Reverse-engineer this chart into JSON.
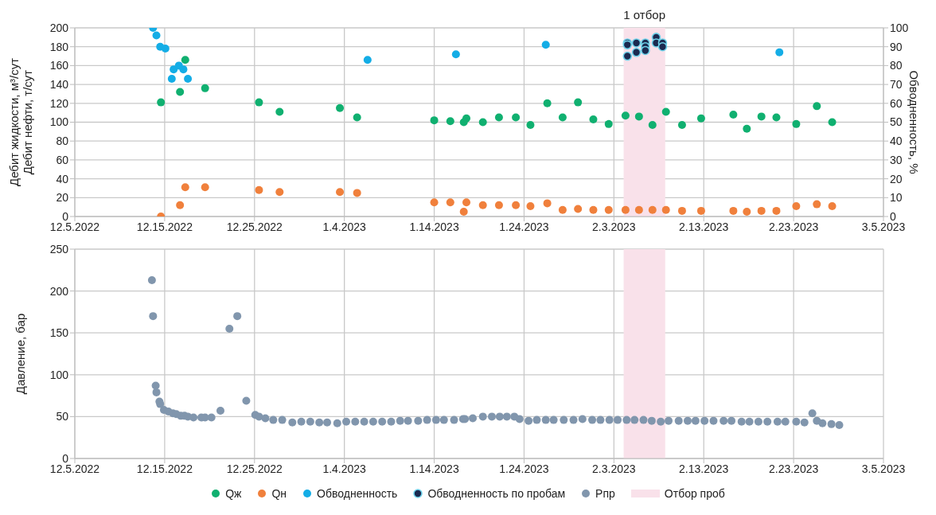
{
  "chart_data": [
    {
      "type": "scatter",
      "ylabel": "Дебит жидкости, м³/сут\nДебит нефти, т/сут",
      "y2label": "Обводненность, %",
      "xlim": [
        "2022-12-05",
        "2023-03-05"
      ],
      "xticks": [
        {
          "value": "2022-12-05",
          "label": "12.5.2022"
        },
        {
          "value": "2022-12-15",
          "label": "12.15.2022"
        },
        {
          "value": "2022-12-25",
          "label": "12.25.2022"
        },
        {
          "value": "2023-01-04",
          "label": "1.4.2023"
        },
        {
          "value": "2023-01-14",
          "label": "1.14.2023"
        },
        {
          "value": "2023-01-24",
          "label": "1.24.2023"
        },
        {
          "value": "2023-02-03",
          "label": "2.3.2023"
        },
        {
          "value": "2023-02-13",
          "label": "2.13.2023"
        },
        {
          "value": "2023-02-23",
          "label": "2.23.2023"
        },
        {
          "value": "2023-03-05",
          "label": "3.5.2023"
        }
      ],
      "ylim": [
        0,
        200
      ],
      "yticks": [
        0,
        20,
        40,
        60,
        80,
        100,
        120,
        140,
        160,
        180,
        200
      ],
      "y2lim": [
        0,
        100
      ],
      "y2ticks": [
        0,
        10,
        20,
        30,
        40,
        50,
        60,
        70,
        80,
        90,
        100
      ],
      "grid": true,
      "legend": "bottom",
      "marker": "circle",
      "x": [
        "2022-12-14T14:00",
        "2022-12-16T17:00",
        "2022-12-17T07:00",
        "2022-12-19T12:00",
        "2022-12-25T12:00",
        "2022-12-27T19:00",
        "2023-01-03T12:00",
        "2023-01-05T10:00",
        "2023-01-14T00:00",
        "2023-01-15T19:00",
        "2023-01-17T07:00",
        "2023-01-17T14:00",
        "2023-01-19T10:00",
        "2023-01-21T05:00",
        "2023-01-23T02:00",
        "2023-01-24T17:00",
        "2023-01-26T14:00",
        "2023-01-28T07:00",
        "2023-01-30T00:00",
        "2023-01-31T17:00",
        "2023-02-02T10:00",
        "2023-02-04T07:00",
        "2023-02-05T19:00",
        "2023-02-07T07:00",
        "2023-02-08T19:00",
        "2023-02-10T14:00",
        "2023-02-12T17:00",
        "2023-02-16T07:00",
        "2023-02-17T19:00",
        "2023-02-19T10:00",
        "2023-02-21T02:00",
        "2023-02-23T07:00",
        "2023-02-25T14:00",
        "2023-02-27T07:00"
      ],
      "series": [
        {
          "name": "Qж",
          "color": "#10b070",
          "values": [
            121,
            132,
            166,
            136,
            121,
            111,
            115,
            105,
            102,
            101,
            100,
            104,
            100,
            105,
            105,
            97,
            120,
            105,
            121,
            103,
            98,
            107,
            106,
            97,
            111,
            97,
            104,
            108,
            93,
            106,
            105,
            98,
            117,
            100
          ]
        },
        {
          "name": "Qн",
          "color": "#f0803c",
          "values": [
            0,
            12,
            31,
            31,
            28,
            26,
            26,
            25,
            15,
            15,
            5,
            15,
            12,
            12,
            12,
            11,
            14,
            7,
            8,
            7,
            7,
            7,
            7,
            7,
            7,
            6,
            6,
            6,
            5,
            6,
            6,
            11,
            13,
            11
          ]
        },
        {
          "name": "Обводненность",
          "color": "#14ade6",
          "axis": "y2",
          "x": [
            "2022-12-13T17:00",
            "2022-12-14T02:00",
            "2022-12-14T12:00",
            "2022-12-15T02:00",
            "2022-12-15T19:00",
            "2022-12-16T00:00",
            "2022-12-16T14:00",
            "2022-12-17T02:00",
            "2022-12-17T14:00",
            "2023-01-06T14:00",
            "2023-01-16T10:00",
            "2023-01-26T10:00",
            "2023-02-21T10:00"
          ],
          "values": [
            100,
            96,
            90,
            89,
            73,
            78,
            80,
            78,
            73,
            83,
            86,
            91,
            87
          ]
        },
        {
          "name": "Обводненность по пробам",
          "color": "#1b2a50",
          "axis": "y2",
          "x": [
            "2023-02-04T12:00",
            "2023-02-04T12:00",
            "2023-02-04T12:00",
            "2023-02-05T12:00",
            "2023-02-05T12:00",
            "2023-02-06T12:00",
            "2023-02-06T12:00",
            "2023-02-06T12:00",
            "2023-02-07T17:00",
            "2023-02-07T17:00",
            "2023-02-08T10:00",
            "2023-02-08T10:00"
          ],
          "values": [
            92,
            91,
            85,
            92,
            87,
            92,
            90,
            88,
            95,
            92,
            92,
            90
          ]
        }
      ],
      "bands": [
        {
          "axis": "x",
          "from": "2023-02-04T02:00",
          "to": "2023-02-08T17:00",
          "label": "1 отбор",
          "color": "#f9e1ea"
        }
      ]
    },
    {
      "type": "scatter",
      "ylabel": "Давление, бар",
      "xlim": [
        "2022-12-05",
        "2023-03-05"
      ],
      "xticks": [
        {
          "value": "2022-12-05",
          "label": "12.5.2022"
        },
        {
          "value": "2022-12-15",
          "label": "12.15.2022"
        },
        {
          "value": "2022-12-25",
          "label": "12.25.2022"
        },
        {
          "value": "2023-01-04",
          "label": "1.4.2023"
        },
        {
          "value": "2023-01-14",
          "label": "1.14.2023"
        },
        {
          "value": "2023-01-24",
          "label": "1.24.2023"
        },
        {
          "value": "2023-02-03",
          "label": "2.3.2023"
        },
        {
          "value": "2023-02-13",
          "label": "2.13.2023"
        },
        {
          "value": "2023-02-23",
          "label": "2.23.2023"
        },
        {
          "value": "2023-03-05",
          "label": "3.5.2023"
        }
      ],
      "ylim": [
        0,
        250
      ],
      "yticks": [
        0,
        50,
        100,
        150,
        200,
        250
      ],
      "grid": true,
      "legend": "bottom",
      "marker": "circle",
      "series": [
        {
          "name": "Pпр",
          "color": "#8196ad",
          "x": [
            "2022-12-13T14:00",
            "2022-12-13T17:00",
            "2022-12-14T00:00",
            "2022-12-14T02:00",
            "2022-12-14T10:00",
            "2022-12-14T12:00",
            "2022-12-14T22:00",
            "2022-12-15T10:00",
            "2022-12-15T22:00",
            "2022-12-16T07:00",
            "2022-12-16T19:00",
            "2022-12-17T05:00",
            "2022-12-17T14:00",
            "2022-12-18T05:00",
            "2022-12-19T02:00",
            "2022-12-19T12:00",
            "2022-12-20T05:00",
            "2022-12-21T05:00",
            "2022-12-22T05:00",
            "2022-12-23T02:00",
            "2022-12-24T02:00",
            "2022-12-25T02:00",
            "2022-12-25T12:00",
            "2022-12-26T05:00",
            "2022-12-27T02:00",
            "2022-12-28T02:00",
            "2022-12-29T05:00",
            "2022-12-30T05:00",
            "2022-12-31T05:00",
            "2023-01-01T05:00",
            "2023-01-02T02:00",
            "2023-01-03T05:00",
            "2023-01-04T05:00",
            "2023-01-05T05:00",
            "2023-01-06T05:00",
            "2023-01-07T05:00",
            "2023-01-08T05:00",
            "2023-01-09T05:00",
            "2023-01-10T05:00",
            "2023-01-11T02:00",
            "2023-01-12T05:00",
            "2023-01-13T05:00",
            "2023-01-14T05:00",
            "2023-01-15T02:00",
            "2023-01-16T05:00",
            "2023-01-17T05:00",
            "2023-01-17T10:00",
            "2023-01-18T07:00",
            "2023-01-19T10:00",
            "2023-01-20T10:00",
            "2023-01-21T07:00",
            "2023-01-22T02:00",
            "2023-01-22T22:00",
            "2023-01-23T12:00",
            "2023-01-24T12:00",
            "2023-01-25T10:00",
            "2023-01-26T10:00",
            "2023-01-27T07:00",
            "2023-01-28T10:00",
            "2023-01-29T12:00",
            "2023-01-30T12:00",
            "2023-01-31T14:00",
            "2023-02-01T12:00",
            "2023-02-02T12:00",
            "2023-02-03T10:00",
            "2023-02-04T10:00",
            "2023-02-05T07:00",
            "2023-02-06T07:00",
            "2023-02-07T05:00",
            "2023-02-08T05:00",
            "2023-02-09T02:00",
            "2023-02-10T05:00",
            "2023-02-11T05:00",
            "2023-02-12T02:00",
            "2023-02-13T02:00",
            "2023-02-14T02:00",
            "2023-02-15T05:00",
            "2023-02-16T02:00",
            "2023-02-17T05:00",
            "2023-02-18T02:00",
            "2023-02-19T02:00",
            "2023-02-20T02:00",
            "2023-02-21T05:00",
            "2023-02-22T02:00",
            "2023-02-23T07:00",
            "2023-02-24T05:00",
            "2023-02-25T02:00",
            "2023-02-25T14:00",
            "2023-02-26T05:00",
            "2023-02-27T05:00",
            "2023-02-28T02:00"
          ],
          "values": [
            213,
            170,
            87,
            79,
            68,
            65,
            58,
            56,
            54,
            53,
            51,
            51,
            50,
            49,
            49,
            49,
            49,
            57,
            155,
            170,
            69,
            52,
            50,
            48,
            46,
            46,
            43,
            44,
            44,
            43,
            43,
            42,
            44,
            44,
            44,
            44,
            44,
            44,
            45,
            45,
            45,
            46,
            46,
            46,
            46,
            47,
            47,
            48,
            50,
            50,
            50,
            50,
            50,
            47,
            45,
            46,
            46,
            46,
            46,
            46,
            47,
            46,
            46,
            46,
            46,
            46,
            46,
            46,
            45,
            44,
            45,
            45,
            45,
            45,
            45,
            45,
            45,
            45,
            44,
            44,
            44,
            44,
            44,
            44,
            44,
            43,
            54,
            45,
            42,
            41,
            40
          ]
        }
      ],
      "bands": [
        {
          "axis": "x",
          "from": "2023-02-04T02:00",
          "to": "2023-02-08T17:00",
          "label": "Отбор проб",
          "color": "#f9e1ea"
        }
      ]
    }
  ]
}
